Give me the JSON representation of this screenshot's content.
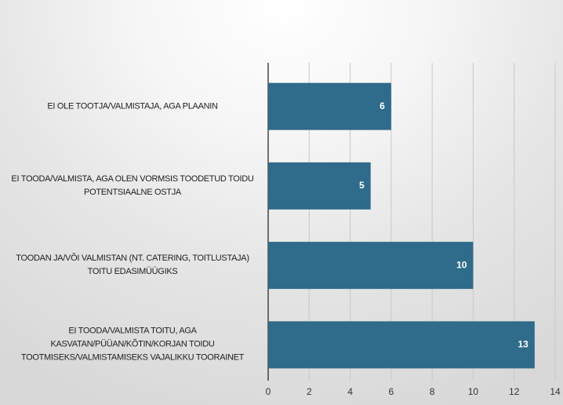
{
  "chart_data": {
    "type": "bar",
    "orientation": "horizontal",
    "categories": [
      "EI OLE TOOTJA/VALMISTAJA, AGA PLAANIN",
      "EI TOODA/VALMISTA, AGA OLEN VORMSIS TOODETUD TOIDU POTENTSIAALNE OSTJA",
      "TOODAN JA/VÕI VALMISTAN (NT. CATERING, TOITLUSTAJA) TOITU EDASIMÜÜGIKS",
      "EI TOODA/VALMISTA TOITU, AGA KASVATAN/PÜÜAN/KÕTIN/KORJAN TOIDU TOOTMISEKS/VALMISTAMISEKS VAJALIKKU TOORAINET"
    ],
    "values": [
      6,
      5,
      10,
      13
    ],
    "color": "#2f6b8a",
    "xlim": [
      0,
      14
    ],
    "xticks": [
      0,
      2,
      4,
      6,
      8,
      10,
      12,
      14
    ],
    "grid": true
  }
}
